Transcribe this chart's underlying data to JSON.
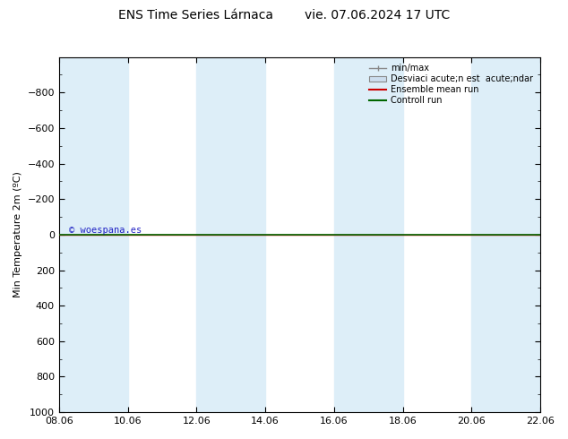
{
  "title": "ENS Time Series Lárnaca        vie. 07.06.2024 17 UTC",
  "ylabel": "Min Temperature 2m (ºC)",
  "ylim": [
    -1000,
    1000
  ],
  "yticks": [
    -800,
    -600,
    -400,
    -200,
    0,
    200,
    400,
    600,
    800,
    1000
  ],
  "xtick_labels": [
    "08.06",
    "10.06",
    "12.06",
    "14.06",
    "16.06",
    "18.06",
    "20.06",
    "22.06"
  ],
  "xtick_positions": [
    0,
    2,
    4,
    6,
    8,
    10,
    12,
    14
  ],
  "shaded_bands": [
    [
      0,
      2
    ],
    [
      4,
      6
    ],
    [
      8,
      10
    ],
    [
      12,
      14
    ],
    [
      13.5,
      15
    ]
  ],
  "green_line_y": 0,
  "red_line_y": 0,
  "watermark": "© woespana.es",
  "legend_labels": [
    "min/max",
    "Desviaci acute;n est  acute;ndar",
    "Ensemble mean run",
    "Controll run"
  ],
  "bg_color": "#ffffff",
  "band_color": "#ddeef8",
  "title_fontsize": 10,
  "axis_fontsize": 8,
  "tick_fontsize": 8
}
